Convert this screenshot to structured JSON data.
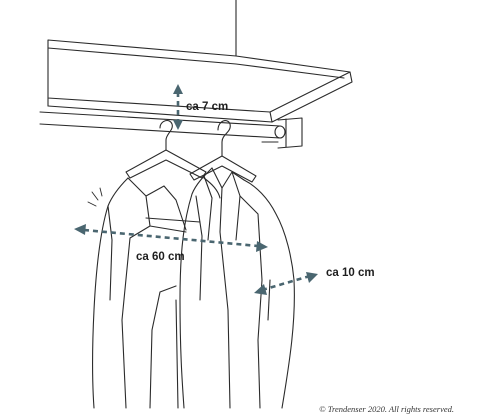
{
  "annotations": {
    "gap": "ca 7 cm",
    "rod_length": "ca 60 cm",
    "depth": "ca 10 cm"
  },
  "copyright": "© Trendenser 2020. All rights reserved.",
  "colors": {
    "line": "#2b2b2b",
    "measure": "#4a6670"
  }
}
